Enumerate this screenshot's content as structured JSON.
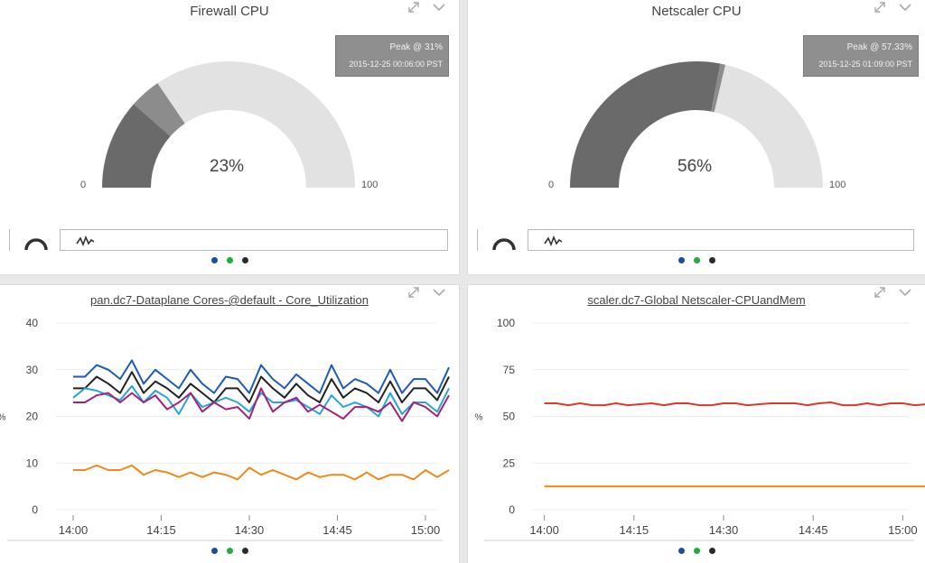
{
  "colors": {
    "gauge_filled": "#6a6a6a",
    "gauge_peak": "#8c8c8c",
    "gauge_empty": "#e2e2e2",
    "dot_blue": "#1a4f98",
    "dot_green": "#1fae3a",
    "dot_black": "#2b2b2b"
  },
  "icons": {
    "expand": "expand-icon",
    "collapse": "chevron-down-icon",
    "gauge_view": "gauge-icon",
    "trend_view": "trend-icon"
  },
  "firewall": {
    "title": "Firewall CPU",
    "value": 23,
    "peak": 31,
    "value_label": "23%",
    "min_label": "0",
    "max_label": "100",
    "tooltip_title": "Peak @ 31%",
    "tooltip_time": "2015-12-25 00:06:00 PST"
  },
  "netscaler": {
    "title": "Netscaler CPU",
    "value": 56,
    "peak": 57.33,
    "value_label": "56%",
    "min_label": "0",
    "max_label": "100",
    "tooltip_title": "Peak @ 57.33%",
    "tooltip_time": "2015-12-25 01:09:00 PST"
  },
  "chart_data": [
    {
      "type": "line",
      "title": "pan.dc7-Dataplane Cores-@default - Core_Utilization",
      "ylabel": "%",
      "ylim": [
        0,
        40
      ],
      "yticks": [
        "0",
        "10",
        "20",
        "30",
        "40"
      ],
      "xticks": [
        "14:00",
        "14:15",
        "14:30",
        "14:45",
        "15:00"
      ],
      "x_start_minutes": 0,
      "x_step_minutes": 2,
      "x_range_minutes": [
        -2,
        62
      ],
      "series": [
        {
          "color": "#1f5bb5",
          "values": [
            28.5,
            28.5,
            31,
            30,
            28,
            32,
            27,
            30,
            28,
            26,
            30,
            27,
            25,
            28.5,
            28,
            25,
            31,
            28,
            26,
            29,
            27,
            25,
            31,
            26,
            28,
            27,
            25,
            30,
            25,
            28,
            28,
            25,
            30.5
          ]
        },
        {
          "color": "#222222",
          "values": [
            26,
            26,
            28.5,
            27,
            25,
            29.5,
            25,
            27.5,
            26,
            24,
            27,
            25,
            23,
            26,
            26,
            23,
            28.5,
            26,
            24,
            27,
            24.5,
            23,
            28,
            24,
            26,
            25,
            23,
            27.5,
            23,
            26,
            26,
            23.5,
            28.5
          ]
        },
        {
          "color": "#29a3dc",
          "values": [
            24,
            26,
            25.5,
            24.5,
            23.5,
            26.5,
            23,
            25.5,
            24,
            20.5,
            25,
            22,
            23,
            24,
            23,
            21,
            25,
            23,
            23,
            23.5,
            22,
            20.5,
            24.5,
            22,
            23,
            22,
            20,
            25,
            20.5,
            23,
            23,
            21,
            26
          ]
        },
        {
          "color": "#a4207a",
          "values": [
            23,
            23,
            24.5,
            25,
            23,
            25,
            23,
            24.5,
            21.5,
            23,
            25,
            21,
            23,
            21.5,
            22,
            19.5,
            26,
            21,
            23,
            24,
            21,
            22.5,
            21,
            19.5,
            22,
            22,
            21,
            23,
            19,
            23,
            22,
            20,
            24.5
          ]
        },
        {
          "color": "#f0891a",
          "values": [
            8.5,
            8.5,
            9.5,
            8.5,
            8.5,
            9.5,
            7.5,
            8.5,
            8,
            7,
            8,
            7,
            8,
            7.5,
            6.5,
            9,
            7.5,
            8.5,
            7.5,
            6.5,
            8,
            7,
            7.5,
            7.5,
            6.5,
            8,
            6.5,
            7.5,
            7.5,
            6.5,
            8.5,
            7,
            8.5
          ]
        }
      ]
    },
    {
      "type": "line",
      "title": "scaler.dc7-Global Netscaler-CPUandMem",
      "ylabel": "%",
      "ylim": [
        0,
        100
      ],
      "yticks": [
        "0",
        "25",
        "50",
        "75",
        "100"
      ],
      "xticks": [
        "14:00",
        "14:15",
        "14:30",
        "14:45",
        "15:00"
      ],
      "x_start_minutes": 0,
      "x_step_minutes": 2,
      "x_range_minutes": [
        -1,
        61
      ],
      "series": [
        {
          "color": "#e0362c",
          "values": [
            57,
            57,
            56,
            57,
            56,
            56,
            57,
            56,
            56.5,
            57,
            56,
            57,
            57,
            56,
            56,
            57,
            57,
            56,
            56.5,
            57,
            57,
            57,
            56,
            57,
            57.5,
            56,
            56,
            57,
            56,
            57,
            57,
            56,
            56.5,
            56
          ]
        },
        {
          "color": "#f0891a",
          "values": [
            12.5,
            12.5,
            12.5,
            12.5,
            12.5,
            12.5,
            12.5,
            12.5,
            12.5,
            12.5,
            12.5,
            12.5,
            12.5,
            12.5,
            12.5,
            12.5,
            12.5,
            12.5,
            12.5,
            12.5,
            12.5,
            12.5,
            12.5,
            12.5,
            12.5,
            12.5,
            12.5,
            12.5,
            12.5,
            12.5,
            12.5,
            12.5,
            12.5,
            12.5
          ]
        }
      ]
    }
  ]
}
